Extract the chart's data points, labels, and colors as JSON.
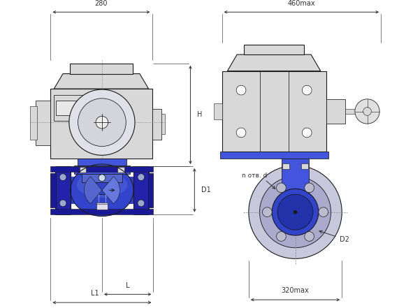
{
  "bg_color": "#ffffff",
  "line_color": "#1a1a1a",
  "blue_dark": "#1a1a99",
  "blue_mid": "#3333bb",
  "blue_light": "#8888cc",
  "blue_flange": "#2222aa",
  "blue_body": "#3344cc",
  "blue_neck": "#4455dd",
  "gray_light": "#d8d8d8",
  "gray_mid": "#bbbbbb",
  "gray_dark": "#888888",
  "dim_color": "#333333",
  "dim_280": "280",
  "dim_460": "460max",
  "dim_H": "H",
  "dim_D1": "D1",
  "dim_L": "L",
  "dim_L1": "L1",
  "dim_D2": "D2",
  "dim_n": "n отв. d",
  "dim_320": "320max"
}
